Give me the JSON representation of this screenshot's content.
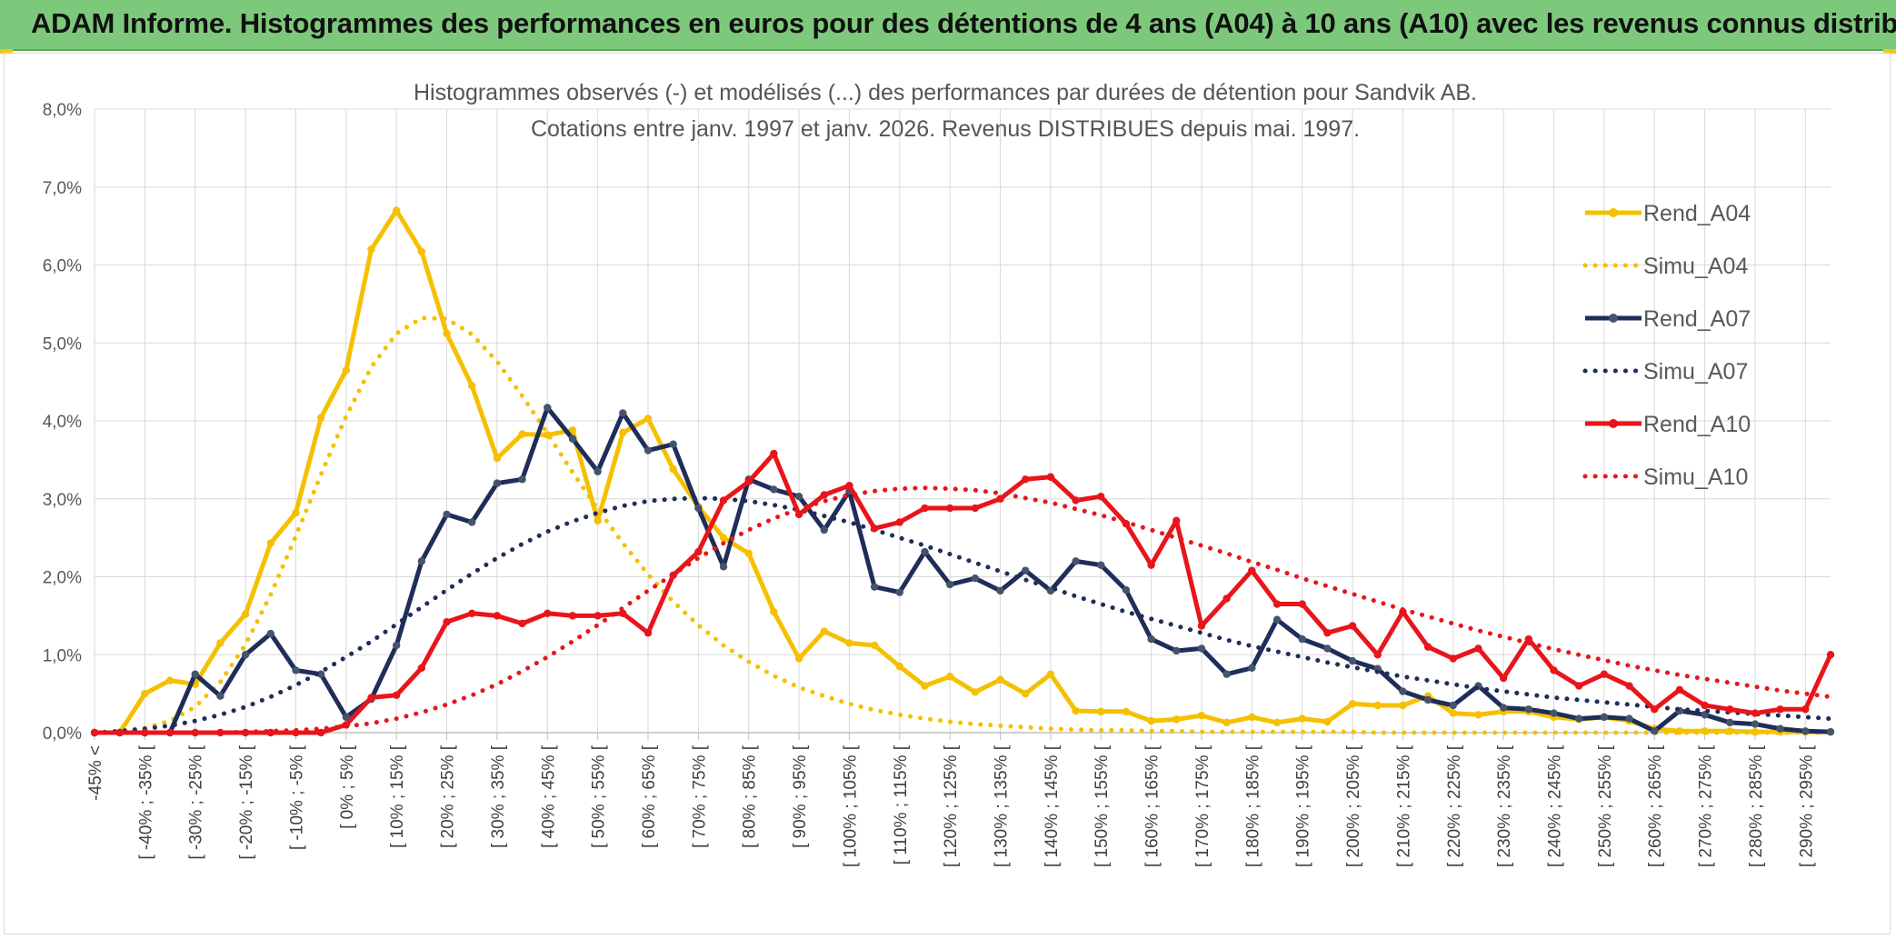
{
  "banner": {
    "title": "ADAM Informe. Histogrammes des performances en euros pour des détentions de 4 ans (A04) à 10 ans (A10) avec les revenus connus distribués"
  },
  "chart_data": {
    "type": "line",
    "title_line1": "Histogrammes observés (-) et modélisés (...) des performances par durées de détention pour Sandvik AB.",
    "title_line2": "Cotations entre janv. 1997 et janv. 2026. Revenus DISTRIBUES depuis mai. 1997.",
    "ylim": [
      0,
      8
    ],
    "ytick_labels": [
      "0,0%",
      "1,0%",
      "2,0%",
      "3,0%",
      "4,0%",
      "5,0%",
      "6,0%",
      "7,0%",
      "8,0%"
    ],
    "tick_labels": [
      "-45% <",
      "[ -40% ; -35% [",
      "[ -30% ; -25% [",
      "[ -20% ; -15% [",
      "[ -10% ; -5% [",
      "[ 0% ; 5% [",
      "[ 10% ; 15% [",
      "[ 20% ; 25% [",
      "[ 30% ; 35% [",
      "[ 40% ; 45% [",
      "[ 50% ; 55% [",
      "[ 60% ; 65% [",
      "[ 70% ; 75% [",
      "[ 80% ; 85% [",
      "[ 90% ; 95% [",
      "[ 100% ; 105% [",
      "[ 110% ; 115% [",
      "[ 120% ; 125% [",
      "[ 130% ; 135% [",
      "[ 140% ; 145% [",
      "[ 150% ; 155% [",
      "[ 160% ; 165% [",
      "[ 170% ; 175% [",
      "[ 180% ; 185% [",
      "[ 190% ; 195% [",
      "[ 200% ; 205% [",
      "[ 210% ; 215% [",
      "[ 220% ; 225% [",
      "[ 230% ; 235% [",
      "[ 240% ; 245% [",
      "[ 250% ; 255% [",
      "[ 260% ; 265% [",
      "[ 270% ; 275% [",
      "[ 280% ; 285% [",
      "[ 290% ; 295% ["
    ],
    "n_categories": 70,
    "legend_position": "right",
    "series": [
      {
        "name": "Rend_A04",
        "style": "solid",
        "color": "#f5c000",
        "values": [
          0,
          0,
          0.5,
          0.67,
          0.62,
          1.15,
          1.52,
          2.43,
          2.82,
          4.04,
          4.65,
          6.2,
          6.7,
          6.17,
          5.12,
          4.45,
          3.52,
          3.83,
          3.82,
          3.88,
          2.72,
          3.85,
          4.03,
          3.38,
          2.9,
          2.5,
          2.3,
          1.55,
          0.95,
          1.3,
          1.15,
          1.12,
          0.85,
          0.6,
          0.72,
          0.52,
          0.68,
          0.5,
          0.75,
          0.28,
          0.27,
          0.27,
          0.15,
          0.17,
          0.22,
          0.13,
          0.2,
          0.13,
          0.18,
          0.14,
          0.37,
          0.35,
          0.35,
          0.47,
          0.25,
          0.23,
          0.27,
          0.27,
          0.2,
          0.17,
          0.2,
          0.15,
          0.05,
          0.02,
          0.02,
          0.02,
          0.01,
          0.01,
          0.01,
          0.01
        ]
      },
      {
        "name": "Simu_A04",
        "style": "dotted",
        "color": "#f5c000",
        "values": [
          0,
          0.02,
          0.06,
          0.15,
          0.33,
          0.65,
          1.13,
          1.77,
          2.52,
          3.31,
          4.06,
          4.69,
          5.12,
          5.32,
          5.31,
          5.11,
          4.76,
          4.32,
          3.84,
          3.34,
          2.87,
          2.43,
          2.03,
          1.68,
          1.38,
          1.12,
          0.91,
          0.73,
          0.58,
          0.47,
          0.37,
          0.29,
          0.23,
          0.18,
          0.14,
          0.11,
          0.09,
          0.07,
          0.05,
          0.04,
          0.03,
          0.03,
          0.02,
          0.02,
          0.01,
          0.01,
          0.01,
          0.01,
          0.01,
          0.01,
          0.01,
          0,
          0,
          0,
          0,
          0,
          0,
          0,
          0,
          0,
          0,
          0,
          0,
          0,
          0,
          0,
          0,
          0,
          0,
          0
        ]
      },
      {
        "name": "Rend_A07",
        "style": "solid",
        "color": "#1f2d5a",
        "values": [
          0,
          0,
          0,
          0,
          0.75,
          0.47,
          1.0,
          1.27,
          0.8,
          0.75,
          0.2,
          0.43,
          1.12,
          2.2,
          2.8,
          2.7,
          3.2,
          3.25,
          4.17,
          3.77,
          3.35,
          4.1,
          3.62,
          3.7,
          2.88,
          2.13,
          3.25,
          3.12,
          3.03,
          2.6,
          3.1,
          1.87,
          1.8,
          2.32,
          1.9,
          1.98,
          1.82,
          2.08,
          1.82,
          2.2,
          2.15,
          1.83,
          1.2,
          1.05,
          1.08,
          0.75,
          0.83,
          1.45,
          1.2,
          1.08,
          0.92,
          0.82,
          0.53,
          0.42,
          0.35,
          0.6,
          0.32,
          0.3,
          0.25,
          0.18,
          0.2,
          0.18,
          0.02,
          0.28,
          0.23,
          0.13,
          0.11,
          0.05,
          0.02,
          0.01
        ]
      },
      {
        "name": "Simu_A07",
        "style": "dotted",
        "color": "#1f2d5a",
        "values": [
          0,
          0.02,
          0.05,
          0.09,
          0.15,
          0.23,
          0.33,
          0.46,
          0.61,
          0.78,
          0.97,
          1.17,
          1.39,
          1.61,
          1.83,
          2.04,
          2.24,
          2.42,
          2.58,
          2.71,
          2.82,
          2.91,
          2.97,
          3.0,
          3.01,
          3.0,
          2.97,
          2.92,
          2.86,
          2.78,
          2.7,
          2.6,
          2.5,
          2.4,
          2.29,
          2.18,
          2.07,
          1.96,
          1.86,
          1.75,
          1.65,
          1.55,
          1.46,
          1.37,
          1.28,
          1.19,
          1.11,
          1.04,
          0.97,
          0.9,
          0.84,
          0.78,
          0.72,
          0.67,
          0.62,
          0.57,
          0.53,
          0.49,
          0.45,
          0.42,
          0.39,
          0.36,
          0.33,
          0.3,
          0.28,
          0.26,
          0.24,
          0.22,
          0.2,
          0.18
        ]
      },
      {
        "name": "Rend_A10",
        "style": "solid",
        "color": "#e8151b",
        "values": [
          0,
          0,
          0,
          0,
          0,
          0,
          0,
          0,
          0,
          0,
          0.1,
          0.45,
          0.48,
          0.83,
          1.42,
          1.53,
          1.5,
          1.4,
          1.53,
          1.5,
          1.5,
          1.53,
          1.28,
          2.02,
          2.32,
          2.98,
          3.22,
          3.58,
          2.8,
          3.05,
          3.17,
          2.62,
          2.7,
          2.88,
          2.88,
          2.88,
          3.0,
          3.25,
          3.28,
          2.98,
          3.03,
          2.68,
          2.15,
          2.72,
          1.37,
          1.72,
          2.08,
          1.65,
          1.65,
          1.28,
          1.37,
          1.0,
          1.55,
          1.1,
          0.95,
          1.08,
          0.7,
          1.2,
          0.8,
          0.6,
          0.75,
          0.6,
          0.3,
          0.55,
          0.35,
          0.3,
          0.25,
          0.3,
          0.3,
          1.0
        ]
      },
      {
        "name": "Simu_A10",
        "style": "dotted",
        "color": "#e8151b",
        "values": [
          0,
          0,
          0,
          0,
          0,
          0,
          0.01,
          0.02,
          0.03,
          0.05,
          0.08,
          0.12,
          0.18,
          0.26,
          0.36,
          0.48,
          0.62,
          0.79,
          0.97,
          1.17,
          1.38,
          1.6,
          1.82,
          2.03,
          2.24,
          2.43,
          2.6,
          2.75,
          2.87,
          2.97,
          3.05,
          3.1,
          3.13,
          3.14,
          3.13,
          3.11,
          3.07,
          3.01,
          2.95,
          2.87,
          2.79,
          2.7,
          2.6,
          2.5,
          2.4,
          2.3,
          2.19,
          2.09,
          1.98,
          1.88,
          1.78,
          1.68,
          1.58,
          1.49,
          1.4,
          1.31,
          1.23,
          1.15,
          1.07,
          1.0,
          0.93,
          0.86,
          0.8,
          0.74,
          0.69,
          0.64,
          0.59,
          0.54,
          0.5,
          0.46
        ]
      }
    ]
  }
}
